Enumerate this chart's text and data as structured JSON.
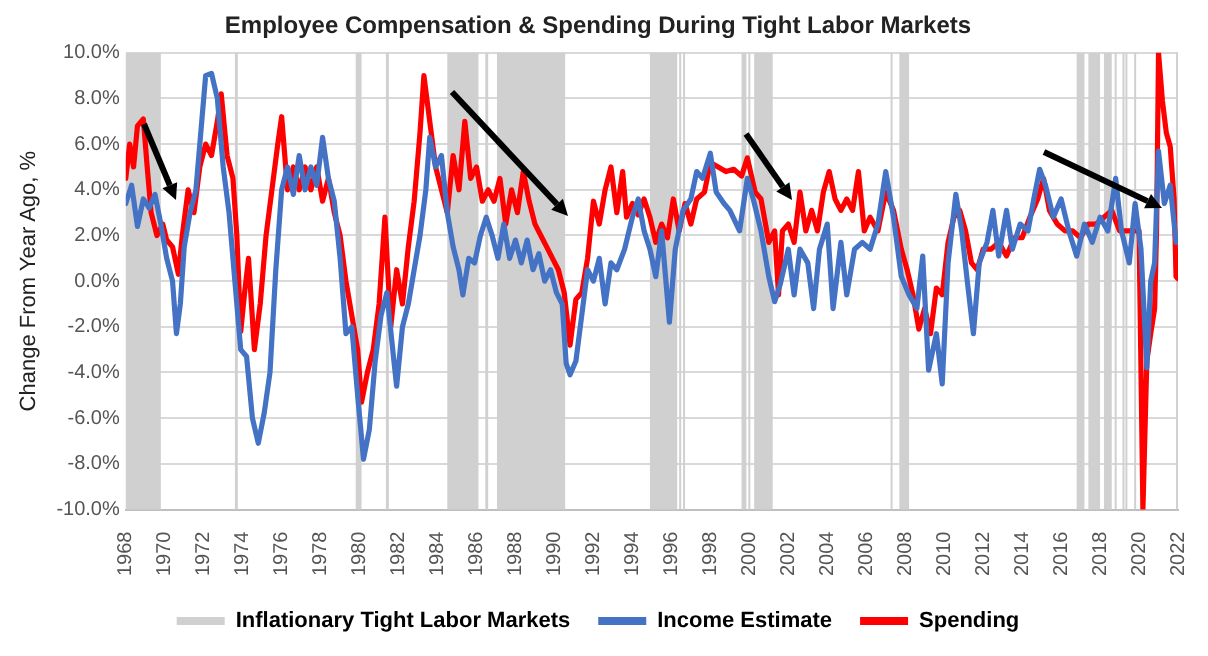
{
  "chart_data": {
    "type": "line",
    "title": "Employee Compensation & Spending During Tight Labor Markets",
    "ylabel": "Change From Year Ago, %",
    "xlim": [
      1968,
      2022
    ],
    "xticks": [
      1968,
      1970,
      1972,
      1974,
      1976,
      1978,
      1980,
      1982,
      1984,
      1986,
      1988,
      1990,
      1992,
      1994,
      1996,
      1998,
      2000,
      2002,
      2004,
      2006,
      2008,
      2010,
      2012,
      2014,
      2016,
      2018,
      2020,
      2022
    ],
    "ylim": [
      -10,
      10
    ],
    "yticks": [
      {
        "value": -10,
        "label": "-10.0%"
      },
      {
        "value": -8,
        "label": "-8.0%"
      },
      {
        "value": -6,
        "label": "-6.0%"
      },
      {
        "value": -4,
        "label": "-4.0%"
      },
      {
        "value": -2,
        "label": "-2.0%"
      },
      {
        "value": 0,
        "label": "0.0%"
      },
      {
        "value": 2,
        "label": "2.0%"
      },
      {
        "value": 4,
        "label": "4.0%"
      },
      {
        "value": 6,
        "label": "6.0%"
      },
      {
        "value": 8,
        "label": "8.0%"
      },
      {
        "value": 10,
        "label": "10.0%"
      }
    ],
    "grid": "y",
    "legend": "bottom",
    "marker": "none",
    "line_style": "solid",
    "bands": [
      {
        "axis": "x",
        "from": 1968.0,
        "to": 1969.8,
        "label": "Inflationary Tight Labor Markets",
        "color": "#d0d0d0"
      },
      {
        "axis": "x",
        "from": 1973.6,
        "to": 1973.75,
        "color": "#d0d0d0"
      },
      {
        "axis": "x",
        "from": 1979.8,
        "to": 1980.1,
        "color": "#d0d0d0"
      },
      {
        "axis": "x",
        "from": 1981.35,
        "to": 1981.5,
        "color": "#d0d0d0"
      },
      {
        "axis": "x",
        "from": 1984.5,
        "to": 1986.1,
        "color": "#d0d0d0"
      },
      {
        "axis": "x",
        "from": 1986.45,
        "to": 1986.6,
        "color": "#d0d0d0"
      },
      {
        "axis": "x",
        "from": 1987.05,
        "to": 1990.55,
        "color": "#d0d0d0"
      },
      {
        "axis": "x",
        "from": 1994.9,
        "to": 1996.3,
        "color": "#d0d0d0"
      },
      {
        "axis": "x",
        "from": 1996.4,
        "to": 1996.5,
        "color": "#d0d0d0"
      },
      {
        "axis": "x",
        "from": 1996.6,
        "to": 1996.7,
        "color": "#d0d0d0"
      },
      {
        "axis": "x",
        "from": 1999.6,
        "to": 1999.85,
        "color": "#d0d0d0"
      },
      {
        "axis": "x",
        "from": 1999.95,
        "to": 2000.05,
        "color": "#d0d0d0"
      },
      {
        "axis": "x",
        "from": 2000.25,
        "to": 2001.2,
        "color": "#d0d0d0"
      },
      {
        "axis": "x",
        "from": 2007.25,
        "to": 2007.35,
        "color": "#d0d0d0"
      },
      {
        "axis": "x",
        "from": 2007.7,
        "to": 2008.2,
        "color": "#d0d0d0"
      },
      {
        "axis": "x",
        "from": 2016.8,
        "to": 2017.2,
        "color": "#d0d0d0"
      },
      {
        "axis": "x",
        "from": 2017.4,
        "to": 2018.0,
        "color": "#d0d0d0"
      },
      {
        "axis": "x",
        "from": 2018.2,
        "to": 2018.6,
        "color": "#d0d0d0"
      },
      {
        "axis": "x",
        "from": 2018.75,
        "to": 2018.85,
        "color": "#d0d0d0"
      },
      {
        "axis": "x",
        "from": 2019.15,
        "to": 2019.25,
        "color": "#d0d0d0"
      },
      {
        "axis": "x",
        "from": 2019.3,
        "to": 2019.4,
        "color": "#d0d0d0"
      },
      {
        "axis": "x",
        "from": 2019.75,
        "to": 2019.85,
        "color": "#d0d0d0"
      },
      {
        "axis": "x",
        "from": 2021.9,
        "to": 2022.0,
        "color": "#d0d0d0"
      }
    ],
    "series": [
      {
        "name": "Income Estimate",
        "color": "#4472c4",
        "x": [
          1968.0,
          1968.3,
          1968.6,
          1968.9,
          1969.2,
          1969.5,
          1969.8,
          1970.1,
          1970.4,
          1970.6,
          1970.8,
          1971.0,
          1971.3,
          1971.6,
          1971.9,
          1972.1,
          1972.4,
          1972.7,
          1973.0,
          1973.3,
          1973.6,
          1973.9,
          1974.2,
          1974.5,
          1974.8,
          1975.1,
          1975.4,
          1975.7,
          1976.0,
          1976.3,
          1976.6,
          1976.9,
          1977.2,
          1977.5,
          1977.8,
          1978.1,
          1978.4,
          1978.7,
          1979.0,
          1979.3,
          1979.6,
          1979.9,
          1980.2,
          1980.5,
          1980.8,
          1981.1,
          1981.4,
          1981.7,
          1981.9,
          1982.2,
          1982.5,
          1982.8,
          1983.1,
          1983.4,
          1983.6,
          1983.9,
          1984.2,
          1984.5,
          1984.8,
          1985.1,
          1985.3,
          1985.6,
          1985.9,
          1986.2,
          1986.5,
          1986.8,
          1987.1,
          1987.4,
          1987.7,
          1988.0,
          1988.3,
          1988.6,
          1988.9,
          1989.2,
          1989.5,
          1989.8,
          1990.1,
          1990.4,
          1990.6,
          1990.8,
          1991.1,
          1991.4,
          1991.7,
          1992.0,
          1992.3,
          1992.6,
          1992.9,
          1993.2,
          1993.6,
          1994.0,
          1994.3,
          1994.6,
          1994.9,
          1995.2,
          1995.5,
          1995.9,
          1996.2,
          1996.6,
          1997.0,
          1997.3,
          1997.6,
          1998.0,
          1998.3,
          1998.7,
          1999.0,
          1999.5,
          1999.9,
          2000.2,
          2000.6,
          2001.0,
          2001.3,
          2001.6,
          2002.0,
          2002.3,
          2002.6,
          2003.0,
          2003.3,
          2003.6,
          2004.0,
          2004.3,
          2004.7,
          2005.0,
          2005.4,
          2005.8,
          2006.2,
          2006.6,
          2007.0,
          2007.4,
          2007.8,
          2008.2,
          2008.6,
          2008.9,
          2009.2,
          2009.6,
          2009.9,
          2010.2,
          2010.6,
          2010.9,
          2011.2,
          2011.5,
          2011.8,
          2012.2,
          2012.5,
          2012.8,
          2013.2,
          2013.5,
          2013.9,
          2014.3,
          2014.6,
          2014.9,
          2015.2,
          2015.6,
          2016.0,
          2016.4,
          2016.8,
          2017.2,
          2017.6,
          2018.0,
          2018.4,
          2018.8,
          2019.1,
          2019.5,
          2019.8,
          2020.1,
          2020.4,
          2020.6,
          2020.8,
          2021.0,
          2021.3,
          2021.6,
          2021.9
        ],
        "values": [
          3.4,
          4.2,
          2.4,
          3.6,
          3.2,
          3.8,
          2.5,
          1.0,
          0.0,
          -2.3,
          -1.0,
          1.5,
          3.0,
          4.0,
          7.0,
          9.0,
          9.1,
          8.0,
          5.0,
          3.0,
          0.0,
          -3.0,
          -3.3,
          -6.0,
          -7.1,
          -5.8,
          -4.0,
          0.5,
          4.0,
          5.0,
          3.8,
          5.5,
          4.0,
          5.0,
          4.2,
          6.3,
          4.5,
          3.5,
          1.0,
          -2.3,
          -2.0,
          -5.0,
          -7.8,
          -6.5,
          -3.5,
          -1.5,
          -0.5,
          -3.0,
          -4.6,
          -2.0,
          -1.0,
          0.5,
          2.0,
          4.0,
          6.3,
          5.0,
          5.5,
          3.0,
          1.5,
          0.5,
          -0.6,
          1.0,
          0.8,
          2.0,
          2.8,
          2.0,
          1.0,
          2.5,
          1.0,
          1.8,
          0.8,
          1.8,
          0.5,
          1.2,
          0.0,
          0.5,
          -0.5,
          -1.0,
          -3.6,
          -4.1,
          -3.5,
          -1.5,
          0.5,
          0.0,
          1.0,
          -1.0,
          0.8,
          0.5,
          1.4,
          2.8,
          3.6,
          2.2,
          1.4,
          0.2,
          2.2,
          -1.8,
          1.4,
          3.1,
          3.6,
          4.8,
          4.5,
          5.6,
          3.9,
          3.4,
          3.1,
          2.2,
          4.5,
          3.6,
          2.2,
          0.2,
          -0.9,
          -0.1,
          1.4,
          -0.6,
          1.4,
          0.8,
          -1.2,
          1.4,
          2.5,
          -1.2,
          1.7,
          -0.6,
          1.4,
          1.7,
          1.4,
          2.5,
          4.8,
          2.8,
          0.2,
          -0.6,
          -1.2,
          1.1,
          -3.9,
          -2.3,
          -4.5,
          0.8,
          3.8,
          2.2,
          -0.1,
          -2.3,
          0.8,
          1.7,
          3.1,
          1.1,
          3.1,
          1.4,
          2.5,
          2.2,
          3.6,
          4.9,
          4.2,
          2.8,
          3.6,
          2.2,
          1.1,
          2.5,
          1.7,
          2.8,
          2.2,
          4.5,
          2.2,
          0.8,
          3.4,
          1.4,
          -3.8,
          0.0,
          0.8,
          5.7,
          3.4,
          4.2,
          1.7
        ]
      },
      {
        "name": "Spending",
        "color": "#ff0000",
        "x": [
          1968.0,
          1968.2,
          1968.4,
          1968.6,
          1968.9,
          1969.1,
          1969.3,
          1969.6,
          1969.9,
          1970.1,
          1970.4,
          1970.7,
          1970.9,
          1971.2,
          1971.5,
          1971.8,
          1972.1,
          1972.4,
          1972.7,
          1972.9,
          1973.2,
          1973.5,
          1973.7,
          1973.9,
          1974.1,
          1974.3,
          1974.6,
          1974.9,
          1975.2,
          1975.5,
          1975.8,
          1976.0,
          1976.3,
          1976.6,
          1976.9,
          1977.2,
          1977.5,
          1977.8,
          1978.1,
          1978.4,
          1978.7,
          1979.0,
          1979.3,
          1979.6,
          1979.9,
          1980.1,
          1980.4,
          1980.7,
          1981.0,
          1981.3,
          1981.6,
          1981.9,
          1982.2,
          1982.5,
          1982.8,
          1983.1,
          1983.3,
          1983.6,
          1983.9,
          1984.2,
          1984.5,
          1984.8,
          1985.1,
          1985.4,
          1985.7,
          1986.0,
          1986.3,
          1986.6,
          1986.9,
          1987.2,
          1987.5,
          1987.8,
          1988.1,
          1988.4,
          1988.7,
          1989.0,
          1989.3,
          1989.6,
          1989.9,
          1990.2,
          1990.5,
          1990.8,
          1991.1,
          1991.4,
          1991.7,
          1992.0,
          1992.3,
          1992.6,
          1992.9,
          1993.2,
          1993.5,
          1993.7,
          1994.0,
          1994.3,
          1994.6,
          1994.9,
          1995.2,
          1995.5,
          1995.8,
          1996.1,
          1996.4,
          1996.7,
          1997.0,
          1997.3,
          1997.7,
          1998.0,
          1998.4,
          1998.8,
          1999.2,
          1999.6,
          1999.9,
          2000.3,
          2000.6,
          2001.0,
          2001.3,
          2001.5,
          2001.7,
          2002.0,
          2002.3,
          2002.6,
          2002.9,
          2003.2,
          2003.5,
          2003.8,
          2004.1,
          2004.4,
          2004.7,
          2005.0,
          2005.3,
          2005.6,
          2005.9,
          2006.2,
          2006.6,
          2007.0,
          2007.4,
          2007.8,
          2008.1,
          2008.4,
          2008.7,
          2009.0,
          2009.3,
          2009.6,
          2009.9,
          2010.2,
          2010.5,
          2010.8,
          2011.1,
          2011.4,
          2011.7,
          2012.0,
          2012.4,
          2012.8,
          2013.2,
          2013.6,
          2014.0,
          2014.4,
          2014.8,
          2015.1,
          2015.4,
          2015.8,
          2016.2,
          2016.6,
          2017.0,
          2017.4,
          2017.8,
          2018.2,
          2018.6,
          2019.0,
          2019.4,
          2019.8,
          2020.0,
          2020.2,
          2020.4,
          2020.6,
          2020.8,
          2020.9,
          2021.0,
          2021.2,
          2021.4,
          2021.6,
          2021.8,
          2021.9,
          2022.0
        ],
        "values": [
          4.5,
          6.0,
          5.0,
          6.8,
          7.1,
          5.0,
          3.0,
          2.0,
          2.5,
          1.8,
          1.5,
          0.3,
          2.0,
          4.0,
          3.0,
          5.0,
          6.0,
          5.5,
          7.0,
          8.2,
          5.5,
          4.5,
          2.0,
          -2.2,
          -0.5,
          1.0,
          -3.0,
          -1.0,
          2.0,
          4.0,
          6.0,
          7.2,
          4.0,
          5.0,
          4.0,
          5.0,
          4.0,
          5.0,
          3.5,
          4.5,
          3.0,
          2.0,
          0.0,
          -1.5,
          -3.0,
          -5.3,
          -4.0,
          -3.0,
          -1.0,
          2.8,
          -2.0,
          0.5,
          -1.0,
          1.5,
          3.5,
          6.5,
          9.0,
          7.0,
          5.0,
          4.0,
          3.0,
          5.5,
          4.0,
          7.0,
          4.5,
          5.0,
          3.5,
          4.0,
          3.5,
          4.5,
          2.5,
          4.0,
          3.0,
          4.8,
          3.5,
          2.5,
          2.0,
          1.5,
          1.0,
          0.5,
          -0.5,
          -2.8,
          -0.8,
          -0.5,
          1.0,
          3.5,
          2.5,
          4.0,
          5.0,
          3.0,
          4.8,
          2.8,
          3.4,
          2.9,
          3.6,
          2.8,
          1.7,
          2.5,
          1.9,
          3.6,
          2.2,
          3.4,
          2.5,
          3.6,
          3.9,
          5.2,
          5.0,
          4.8,
          4.9,
          4.6,
          5.4,
          3.9,
          3.6,
          1.7,
          2.2,
          -0.6,
          2.2,
          2.5,
          1.7,
          3.9,
          2.2,
          3.1,
          2.2,
          3.9,
          4.8,
          3.6,
          3.1,
          3.6,
          3.1,
          4.8,
          2.2,
          2.8,
          2.2,
          3.9,
          3.1,
          1.4,
          0.5,
          -0.6,
          -2.1,
          -1.2,
          -2.3,
          -0.3,
          -0.6,
          1.7,
          2.8,
          3.1,
          2.2,
          0.8,
          0.5,
          1.4,
          1.4,
          1.7,
          1.1,
          1.9,
          1.9,
          2.8,
          3.6,
          4.5,
          3.1,
          2.5,
          2.2,
          2.2,
          1.9,
          2.5,
          2.5,
          2.8,
          3.1,
          2.2,
          2.2,
          2.2,
          2.2,
          -10,
          -3.5,
          -2.3,
          -1.2,
          2.2,
          10,
          7.9,
          6.5,
          5.9,
          3.6,
          0.2,
          0.1
        ]
      }
    ]
  }
}
